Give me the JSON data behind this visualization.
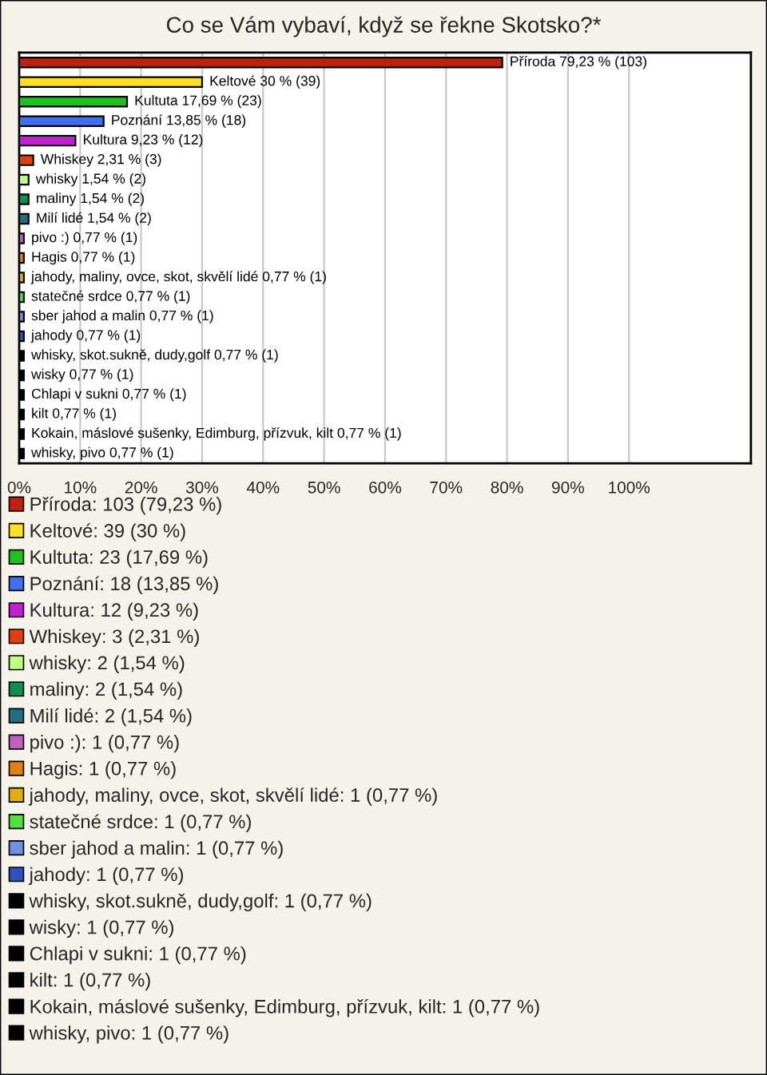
{
  "chart_data": {
    "type": "bar",
    "orientation": "horizontal",
    "title": "Co se Vám vybaví, když se řekne Skotsko?*",
    "categories": [
      "Příroda",
      "Keltové",
      "Kultuta",
      "Poznání",
      "Kultura",
      "Whiskey",
      "whisky",
      "maliny",
      "Milí lidé",
      "pivo :)",
      "Hagis",
      "jahody, maliny, ovce, skot, skvělí lidé",
      "statečné srdce",
      "sber jahod a malin",
      "jahody",
      "whisky, skot.sukně, dudy,golf",
      "wisky",
      "Chlapi v sukni",
      "kilt",
      "Kokain, máslové sušenky, Edimburg, přízvuk, kilt",
      "whisky, pivo"
    ],
    "series": [
      {
        "name": "Příroda: 103 (79,23 %)",
        "color": "#c0200f",
        "values": [
          79.23,
          null,
          null,
          null,
          null,
          null,
          null,
          null,
          null,
          null,
          null,
          null,
          null,
          null,
          null,
          null,
          null,
          null,
          null,
          null,
          null
        ]
      },
      {
        "name": "Keltové: 39 (30 %)",
        "color": "#ffe020",
        "values": [
          null,
          30,
          null,
          null,
          null,
          null,
          null,
          null,
          null,
          null,
          null,
          null,
          null,
          null,
          null,
          null,
          null,
          null,
          null,
          null,
          null
        ]
      },
      {
        "name": "Kultuta: 23 (17,69 %)",
        "color": "#20c020",
        "values": [
          null,
          null,
          17.69,
          null,
          null,
          null,
          null,
          null,
          null,
          null,
          null,
          null,
          null,
          null,
          null,
          null,
          null,
          null,
          null,
          null,
          null
        ]
      },
      {
        "name": "Poznání: 18 (13,85 %)",
        "color": "#4070f0",
        "values": [
          null,
          null,
          null,
          13.85,
          null,
          null,
          null,
          null,
          null,
          null,
          null,
          null,
          null,
          null,
          null,
          null,
          null,
          null,
          null,
          null,
          null
        ]
      },
      {
        "name": "Kultura: 12 (9,23 %)",
        "color": "#c020d0",
        "values": [
          null,
          null,
          null,
          null,
          9.23,
          null,
          null,
          null,
          null,
          null,
          null,
          null,
          null,
          null,
          null,
          null,
          null,
          null,
          null,
          null,
          null
        ]
      },
      {
        "name": "Whiskey: 3 (2,31 %)",
        "color": "#e04010",
        "values": [
          null,
          null,
          null,
          null,
          null,
          2.31,
          null,
          null,
          null,
          null,
          null,
          null,
          null,
          null,
          null,
          null,
          null,
          null,
          null,
          null,
          null
        ]
      },
      {
        "name": "whisky: 2 (1,54 %)",
        "color": "#c0ff80",
        "values": [
          null,
          null,
          null,
          null,
          null,
          null,
          1.54,
          null,
          null,
          null,
          null,
          null,
          null,
          null,
          null,
          null,
          null,
          null,
          null,
          null,
          null
        ]
      },
      {
        "name": "maliny: 2 (1,54 %)",
        "color": "#109050",
        "values": [
          null,
          null,
          null,
          null,
          null,
          null,
          null,
          1.54,
          null,
          null,
          null,
          null,
          null,
          null,
          null,
          null,
          null,
          null,
          null,
          null,
          null
        ]
      },
      {
        "name": "Milí lidé: 2 (1,54 %)",
        "color": "#207080",
        "values": [
          null,
          null,
          null,
          null,
          null,
          null,
          null,
          null,
          1.54,
          null,
          null,
          null,
          null,
          null,
          null,
          null,
          null,
          null,
          null,
          null,
          null
        ]
      },
      {
        "name": "pivo :): 1 (0,77 %)",
        "color": "#c060c0",
        "values": [
          null,
          null,
          null,
          null,
          null,
          null,
          null,
          null,
          null,
          0.77,
          null,
          null,
          null,
          null,
          null,
          null,
          null,
          null,
          null,
          null,
          null
        ]
      },
      {
        "name": "Hagis: 1 (0,77 %)",
        "color": "#e08010",
        "values": [
          null,
          null,
          null,
          null,
          null,
          null,
          null,
          null,
          null,
          null,
          0.77,
          null,
          null,
          null,
          null,
          null,
          null,
          null,
          null,
          null,
          null
        ]
      },
      {
        "name": "jahody, maliny, ovce, skot, skvělí lidé: 1 (0,77 %)",
        "color": "#e0b010",
        "values": [
          null,
          null,
          null,
          null,
          null,
          null,
          null,
          null,
          null,
          null,
          null,
          0.77,
          null,
          null,
          null,
          null,
          null,
          null,
          null,
          null,
          null
        ]
      },
      {
        "name": "statečné srdce: 1 (0,77 %)",
        "color": "#50e040",
        "values": [
          null,
          null,
          null,
          null,
          null,
          null,
          null,
          null,
          null,
          null,
          null,
          null,
          0.77,
          null,
          null,
          null,
          null,
          null,
          null,
          null,
          null
        ]
      },
      {
        "name": "sber jahod a malin: 1 (0,77 %)",
        "color": "#7090e0",
        "values": [
          null,
          null,
          null,
          null,
          null,
          null,
          null,
          null,
          null,
          null,
          null,
          null,
          null,
          0.77,
          null,
          null,
          null,
          null,
          null,
          null,
          null
        ]
      },
      {
        "name": "jahody: 1 (0,77 %)",
        "color": "#3050c0",
        "values": [
          null,
          null,
          null,
          null,
          null,
          null,
          null,
          null,
          null,
          null,
          null,
          null,
          null,
          null,
          0.77,
          null,
          null,
          null,
          null,
          null,
          null
        ]
      },
      {
        "name": "whisky, skot.sukně, dudy,golf: 1 (0,77 %)",
        "color": "#000000",
        "values": [
          null,
          null,
          null,
          null,
          null,
          null,
          null,
          null,
          null,
          null,
          null,
          null,
          null,
          null,
          null,
          0.77,
          null,
          null,
          null,
          null,
          null
        ]
      },
      {
        "name": "wisky: 1 (0,77 %)",
        "color": "#000000",
        "values": [
          null,
          null,
          null,
          null,
          null,
          null,
          null,
          null,
          null,
          null,
          null,
          null,
          null,
          null,
          null,
          null,
          0.77,
          null,
          null,
          null,
          null
        ]
      },
      {
        "name": "Chlapi v sukni: 1 (0,77 %)",
        "color": "#000000",
        "values": [
          null,
          null,
          null,
          null,
          null,
          null,
          null,
          null,
          null,
          null,
          null,
          null,
          null,
          null,
          null,
          null,
          null,
          0.77,
          null,
          null,
          null
        ]
      },
      {
        "name": "kilt: 1 (0,77 %)",
        "color": "#000000",
        "values": [
          null,
          null,
          null,
          null,
          null,
          null,
          null,
          null,
          null,
          null,
          null,
          null,
          null,
          null,
          null,
          null,
          null,
          null,
          0.77,
          null,
          null
        ]
      },
      {
        "name": "Kokain, máslové sušenky, Edimburg, přízvuk, kilt: 1 (0,77 %)",
        "color": "#000000",
        "values": [
          null,
          null,
          null,
          null,
          null,
          null,
          null,
          null,
          null,
          null,
          null,
          null,
          null,
          null,
          null,
          null,
          null,
          null,
          null,
          0.77,
          null
        ]
      },
      {
        "name": "whisky, pivo: 1 (0,77 %)",
        "color": "#000000",
        "values": [
          null,
          null,
          null,
          null,
          null,
          null,
          null,
          null,
          null,
          null,
          null,
          null,
          null,
          null,
          null,
          null,
          null,
          null,
          null,
          null,
          0.77
        ]
      }
    ],
    "value_labels": [
      "79,23 % (103)",
      "30 % (39)",
      "17,69 % (23)",
      "13,85 % (18)",
      "9,23 % (12)",
      "2,31 % (3)",
      "1,54 % (2)",
      "1,54 % (2)",
      "1,54 % (2)",
      "0,77 % (1)",
      "0,77 % (1)",
      "0,77 % (1)",
      "0,77 % (1)",
      "0,77 % (1)",
      "0,77 % (1)",
      "0,77 % (1)",
      "0,77 % (1)",
      "0,77 % (1)",
      "0,77 % (1)",
      "0,77 % (1)",
      "0,77 % (1)"
    ],
    "xlim": [
      0,
      120
    ],
    "xticks": [
      {
        "value": 0,
        "label": "0%"
      },
      {
        "value": 10,
        "label": "10%"
      },
      {
        "value": 20,
        "label": "20%"
      },
      {
        "value": 30,
        "label": "30%"
      },
      {
        "value": 40,
        "label": "40%"
      },
      {
        "value": 50,
        "label": "50%"
      },
      {
        "value": 60,
        "label": "60%"
      },
      {
        "value": 70,
        "label": "70%"
      },
      {
        "value": 80,
        "label": "80%"
      },
      {
        "value": 90,
        "label": "90%"
      },
      {
        "value": 100,
        "label": "100%"
      }
    ],
    "grid": "x",
    "tick_labels": "x",
    "legend": "bottom"
  }
}
